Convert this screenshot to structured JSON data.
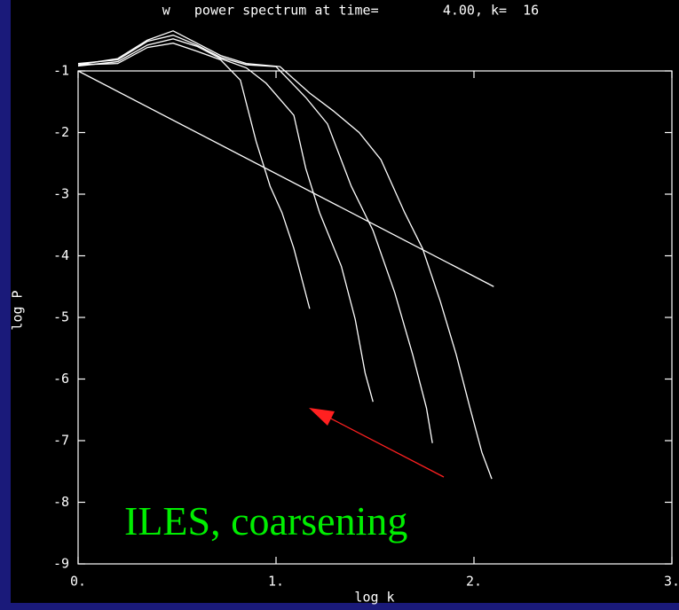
{
  "chart_data": {
    "type": "line",
    "title": "w   power spectrum at time=        4.00, k=  16",
    "x_label": "log k",
    "y_label": "log P",
    "annotation": "ILES, coarsening",
    "xlim": [
      0,
      3
    ],
    "ylim": [
      -9,
      -1
    ],
    "xticks": [
      {
        "value": 0,
        "label": "0."
      },
      {
        "value": 1,
        "label": "1."
      },
      {
        "value": 2,
        "label": "2."
      },
      {
        "value": 3,
        "label": "3."
      }
    ],
    "yticks": [
      -1,
      -2,
      -3,
      -4,
      -5,
      -6,
      -7,
      -8,
      -9
    ],
    "series": [
      {
        "color": "#ffffff",
        "x": [
          0,
          2.1
        ],
        "values": [
          -1,
          -4.5
        ]
      },
      {
        "color": "#ffffff",
        "x": [
          0,
          0.2,
          0.35,
          0.48,
          0.6,
          0.72,
          0.82,
          0.9,
          0.97,
          1.03,
          1.09,
          1.17
        ],
        "values": [
          -0.9,
          -0.88,
          -0.62,
          -0.55,
          -0.68,
          -0.82,
          -1.15,
          -2.15,
          -2.87,
          -3.3,
          -3.88,
          -4.86
        ]
      },
      {
        "color": "#ffffff",
        "x": [
          0,
          0.2,
          0.35,
          0.48,
          0.6,
          0.72,
          0.85,
          0.95,
          1.09,
          1.15,
          1.22,
          1.33,
          1.4,
          1.45,
          1.49
        ],
        "values": [
          -0.92,
          -0.85,
          -0.58,
          -0.48,
          -0.6,
          -0.8,
          -0.95,
          -1.2,
          -1.72,
          -2.58,
          -3.3,
          -4.17,
          -5.03,
          -5.9,
          -6.37
        ]
      },
      {
        "color": "#ffffff",
        "x": [
          0,
          0.2,
          0.35,
          0.48,
          0.6,
          0.72,
          0.85,
          1.0,
          1.15,
          1.26,
          1.38,
          1.49,
          1.6,
          1.69,
          1.76,
          1.79
        ],
        "values": [
          -0.88,
          -0.82,
          -0.52,
          -0.42,
          -0.58,
          -0.78,
          -0.9,
          -0.93,
          -1.43,
          -1.86,
          -2.87,
          -3.59,
          -4.6,
          -5.6,
          -6.47,
          -7.04
        ]
      },
      {
        "color": "#ffffff",
        "x": [
          0,
          0.2,
          0.35,
          0.48,
          0.6,
          0.72,
          0.85,
          1.02,
          1.17,
          1.29,
          1.42,
          1.53,
          1.65,
          1.74,
          1.83,
          1.91,
          1.98,
          2.04,
          2.09
        ],
        "values": [
          -0.9,
          -0.8,
          -0.5,
          -0.35,
          -0.55,
          -0.75,
          -0.88,
          -0.93,
          -1.36,
          -1.65,
          -2.0,
          -2.44,
          -3.3,
          -3.88,
          -4.74,
          -5.6,
          -6.47,
          -7.19,
          -7.62
        ]
      }
    ]
  }
}
